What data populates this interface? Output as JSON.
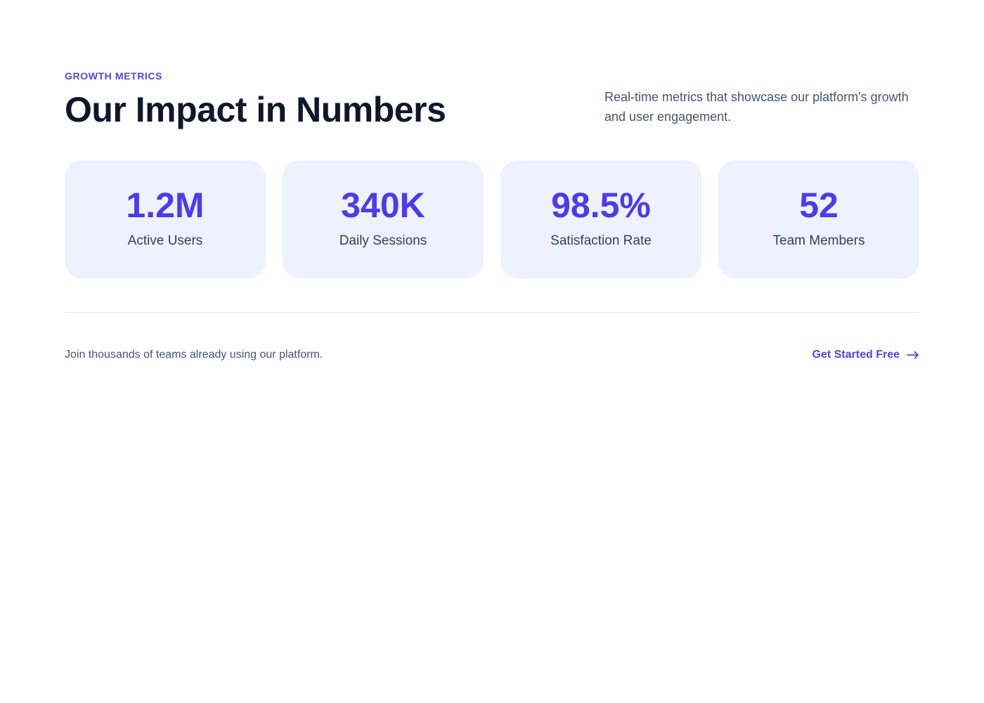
{
  "header": {
    "eyebrow": "GROWTH METRICS",
    "title": "Our Impact in Numbers",
    "description": "Real-time metrics that showcase our platform's growth and user engagement."
  },
  "stats": [
    {
      "value": "1.2M",
      "label": "Active Users"
    },
    {
      "value": "340K",
      "label": "Daily Sessions"
    },
    {
      "value": "98.5%",
      "label": "Satisfaction Rate"
    },
    {
      "value": "52",
      "label": "Team Members"
    }
  ],
  "footer": {
    "text": "Join thousands of teams already using our platform.",
    "cta_label": "Get Started Free",
    "cta_icon": "arrow-right-icon"
  },
  "colors": {
    "accent": "#4f46e5",
    "heading": "#0f172a",
    "card_bg": "#eef2ff",
    "body_text": "#475569"
  }
}
